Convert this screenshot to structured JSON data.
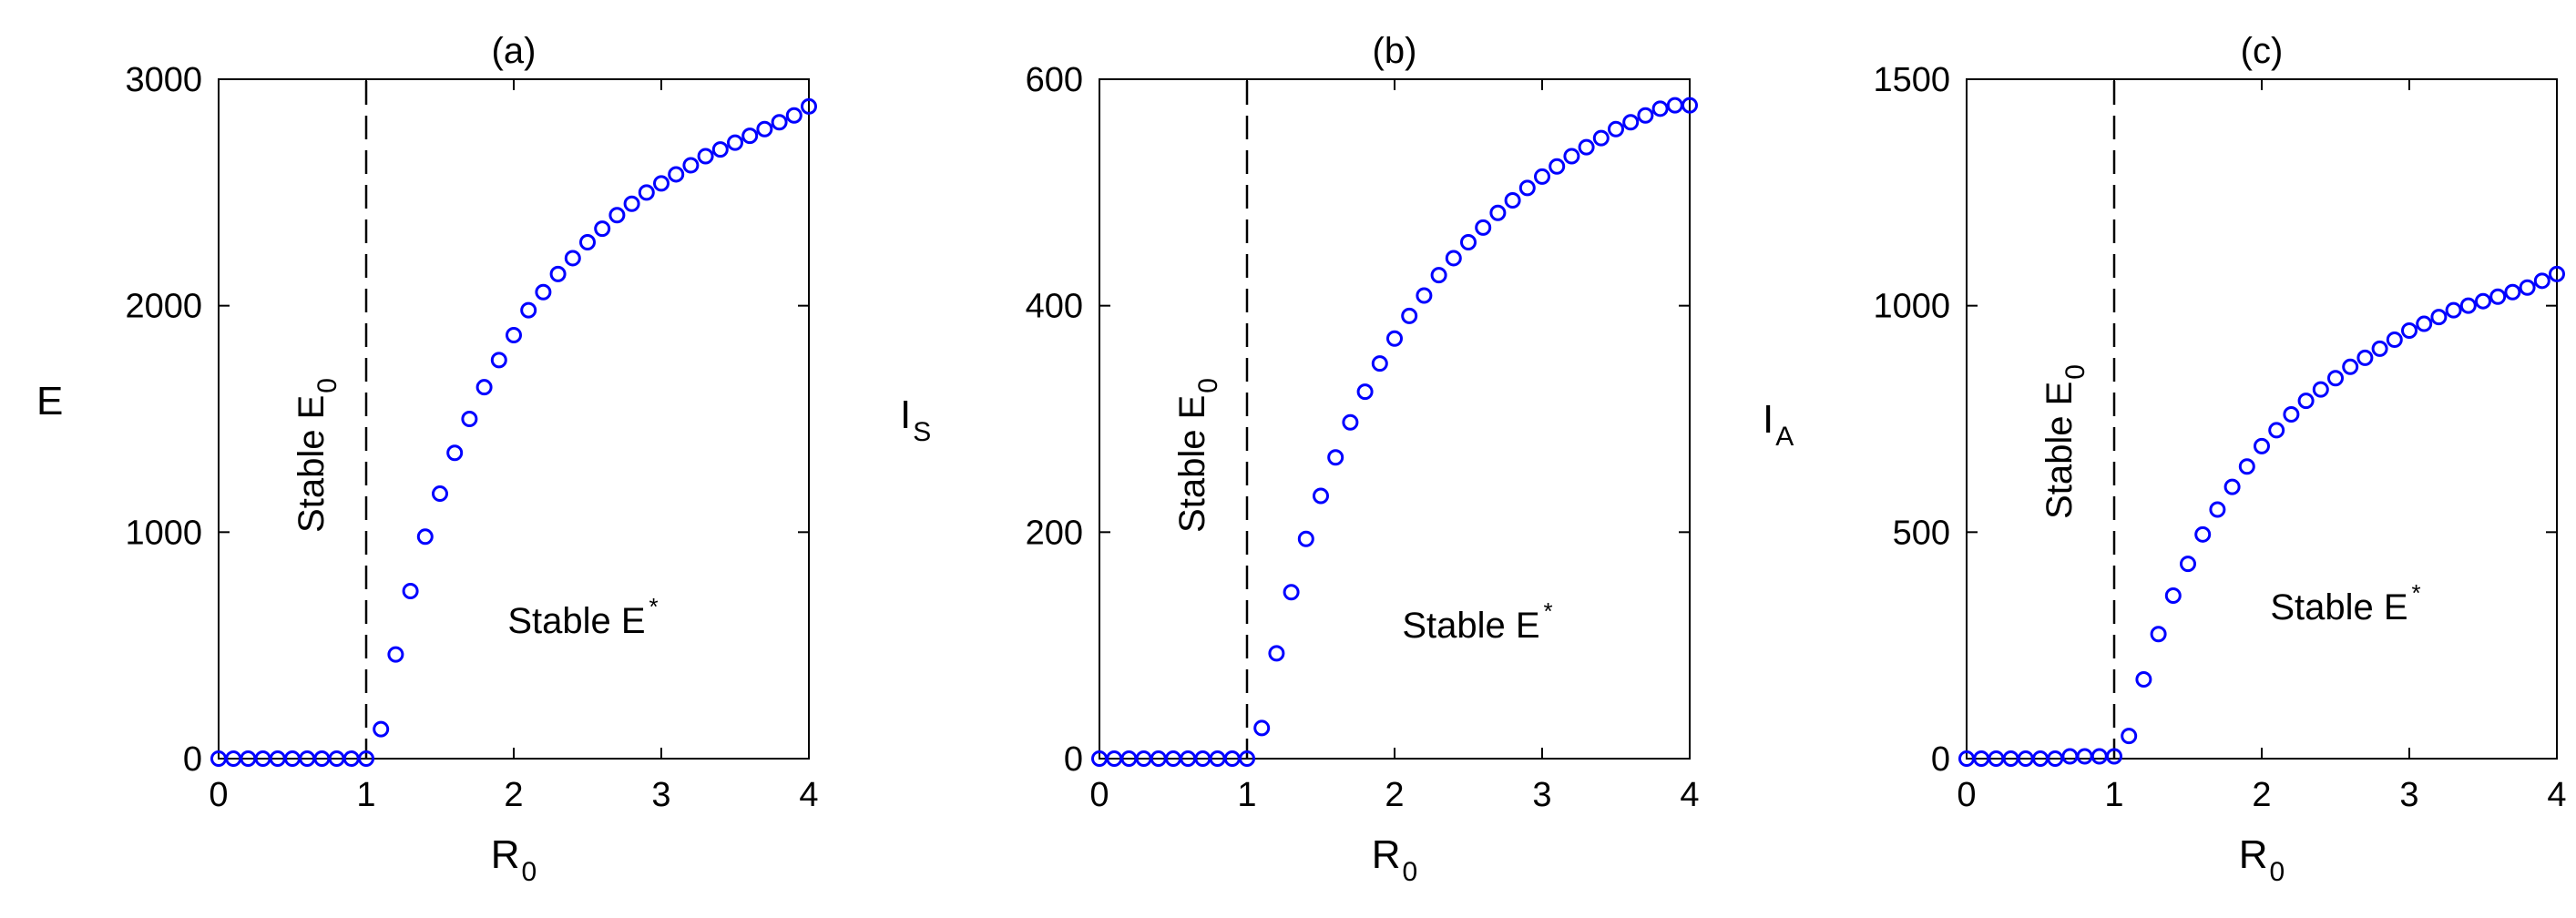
{
  "chart_data": [
    {
      "type": "scatter",
      "title": "(a)",
      "xlabel": "R",
      "xlabel_sub": "0",
      "ylabel": "E",
      "ylabel_sub": "",
      "xlim": [
        0,
        4
      ],
      "ylim": [
        0,
        3000
      ],
      "xticks": [
        "0",
        "1",
        "2",
        "3",
        "4"
      ],
      "xtick_values": [
        0,
        1,
        2,
        3,
        4
      ],
      "yticks": [
        "0",
        "1000",
        "2000",
        "3000"
      ],
      "ytick_values": [
        0,
        1000,
        2000,
        3000
      ],
      "threshold_x": 1,
      "label_e0": "Stable E",
      "label_e0_sub": "0",
      "label_estar": "Stable E",
      "label_estar_sup": "*",
      "marker_color": "#0000ff",
      "x": [
        0,
        0.1,
        0.2,
        0.3,
        0.4,
        0.5,
        0.6,
        0.7,
        0.8,
        0.9,
        1.0,
        1.1,
        1.2,
        1.3,
        1.4,
        1.5,
        1.6,
        1.7,
        1.8,
        1.9,
        2.0,
        2.1,
        2.2,
        2.3,
        2.4,
        2.5,
        2.6,
        2.7,
        2.8,
        2.9,
        3.0,
        3.1,
        3.2,
        3.3,
        3.4,
        3.5,
        3.6,
        3.7,
        3.8,
        3.9,
        4.0
      ],
      "y": [
        0,
        0,
        0,
        0,
        0,
        0,
        0,
        0,
        0,
        0,
        0,
        130,
        460,
        740,
        980,
        1170,
        1350,
        1500,
        1640,
        1760,
        1870,
        1980,
        2060,
        2140,
        2210,
        2280,
        2340,
        2400,
        2450,
        2500,
        2540,
        2580,
        2620,
        2660,
        2690,
        2720,
        2750,
        2780,
        2810,
        2840,
        2880
      ]
    },
    {
      "type": "scatter",
      "title": "(b)",
      "xlabel": "R",
      "xlabel_sub": "0",
      "ylabel": "I",
      "ylabel_sub": "S",
      "xlim": [
        0,
        4
      ],
      "ylim": [
        0,
        600
      ],
      "xticks": [
        "0",
        "1",
        "2",
        "3",
        "4"
      ],
      "xtick_values": [
        0,
        1,
        2,
        3,
        4
      ],
      "yticks": [
        "0",
        "200",
        "400",
        "600"
      ],
      "ytick_values": [
        0,
        200,
        400,
        600
      ],
      "threshold_x": 1,
      "label_e0": "Stable E",
      "label_e0_sub": "0",
      "label_estar": "Stable E",
      "label_estar_sup": "*",
      "marker_color": "#0000ff",
      "x": [
        0,
        0.1,
        0.2,
        0.3,
        0.4,
        0.5,
        0.6,
        0.7,
        0.8,
        0.9,
        1.0,
        1.1,
        1.2,
        1.3,
        1.4,
        1.5,
        1.6,
        1.7,
        1.8,
        1.9,
        2.0,
        2.1,
        2.2,
        2.3,
        2.4,
        2.5,
        2.6,
        2.7,
        2.8,
        2.9,
        3.0,
        3.1,
        3.2,
        3.3,
        3.4,
        3.5,
        3.6,
        3.7,
        3.8,
        3.9,
        4.0
      ],
      "y": [
        0,
        0,
        0,
        0,
        0,
        0,
        0,
        0,
        0,
        0,
        0,
        27,
        93,
        147,
        194,
        232,
        266,
        297,
        324,
        349,
        371,
        391,
        409,
        427,
        442,
        456,
        469,
        482,
        493,
        504,
        514,
        523,
        532,
        540,
        548,
        556,
        562,
        568,
        574,
        577,
        577
      ]
    },
    {
      "type": "scatter",
      "title": "(c)",
      "xlabel": "R",
      "xlabel_sub": "0",
      "ylabel": "I",
      "ylabel_sub": "A",
      "xlim": [
        0,
        4
      ],
      "ylim": [
        0,
        1500
      ],
      "xticks": [
        "0",
        "1",
        "2",
        "3",
        "4"
      ],
      "xtick_values": [
        0,
        1,
        2,
        3,
        4
      ],
      "yticks": [
        "0",
        "500",
        "1000",
        "1500"
      ],
      "ytick_values": [
        0,
        500,
        1000,
        1500
      ],
      "threshold_x": 1,
      "label_e0": "Stable E",
      "label_e0_sub": "0",
      "label_estar": "Stable E",
      "label_estar_sup": "*",
      "marker_color": "#0000ff",
      "x": [
        0,
        0.1,
        0.2,
        0.3,
        0.4,
        0.5,
        0.6,
        0.7,
        0.8,
        0.9,
        1.0,
        1.1,
        1.2,
        1.3,
        1.4,
        1.5,
        1.6,
        1.7,
        1.8,
        1.9,
        2.0,
        2.1,
        2.2,
        2.3,
        2.4,
        2.5,
        2.6,
        2.7,
        2.8,
        2.9,
        3.0,
        3.1,
        3.2,
        3.3,
        3.4,
        3.5,
        3.6,
        3.7,
        3.8,
        3.9,
        4.0
      ],
      "y": [
        0,
        0,
        0,
        0,
        0,
        0,
        0,
        5,
        5,
        5,
        5,
        50,
        175,
        275,
        360,
        430,
        495,
        550,
        600,
        645,
        690,
        725,
        760,
        790,
        815,
        840,
        865,
        885,
        905,
        925,
        945,
        960,
        975,
        990,
        1000,
        1010,
        1020,
        1030,
        1040,
        1055,
        1070
      ]
    }
  ]
}
